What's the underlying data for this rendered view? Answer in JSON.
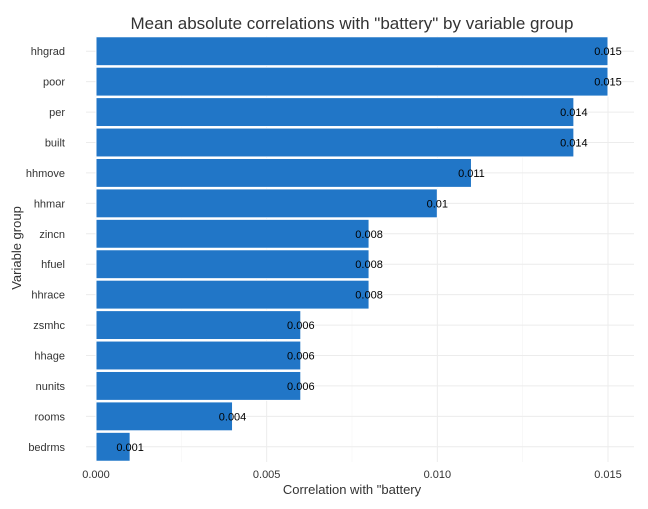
{
  "chart_data": {
    "type": "bar",
    "orientation": "horizontal",
    "title": "Mean absolute correlations with \"battery\" by variable group",
    "xlabel": "Correlation with \"battery",
    "ylabel": "Variable group",
    "categories": [
      "hhgrad",
      "poor",
      "per",
      "built",
      "hhmove",
      "hhmar",
      "zincn",
      "hfuel",
      "hhrace",
      "zsmhc",
      "hhage",
      "nunits",
      "rooms",
      "bedrms"
    ],
    "values": [
      0.015,
      0.015,
      0.014,
      0.014,
      0.011,
      0.01,
      0.008,
      0.008,
      0.008,
      0.006,
      0.006,
      0.006,
      0.004,
      0.001
    ],
    "data_labels": [
      "0.015",
      "0.015",
      "0.014",
      "0.014",
      "0.011",
      "0.01",
      "0.008",
      "0.008",
      "0.008",
      "0.006",
      "0.006",
      "0.006",
      "0.004",
      "0.001"
    ],
    "xlim": [
      0,
      0.0158
    ],
    "xticks": [
      0,
      0.005,
      0.01,
      0.015
    ],
    "xtick_labels": [
      "0.000",
      "0.005",
      "0.010",
      "0.015"
    ],
    "grid": true,
    "legend": "none",
    "colors": {
      "bar": "#2176C7",
      "bar_stroke": "#ffffff",
      "grid_major": "#ECECEC",
      "grid_minor": "#F5F5F5",
      "text": "#333333",
      "label": "#000000"
    }
  }
}
